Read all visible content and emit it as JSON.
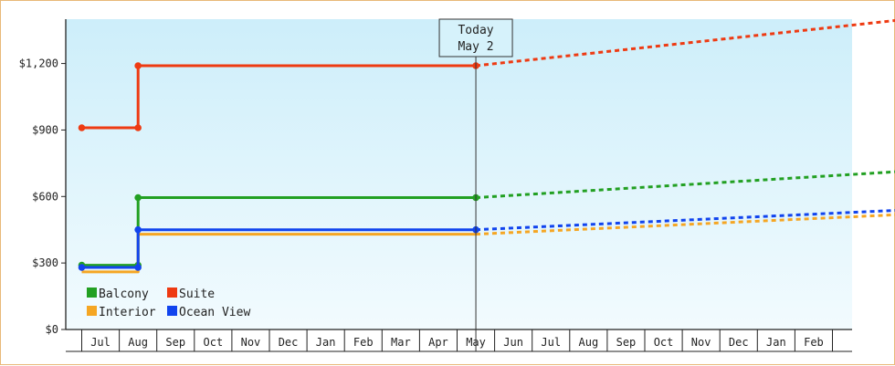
{
  "chart_data": {
    "type": "line",
    "subtype": "step-with-projection",
    "y_axis": {
      "ticks": [
        "$0",
        "$300",
        "$600",
        "$900",
        "$1,200"
      ],
      "tick_values": [
        0,
        300,
        600,
        900,
        1200
      ],
      "ylim": [
        0,
        1400
      ]
    },
    "x_axis": {
      "months": [
        "Jul",
        "Aug",
        "Sep",
        "Oct",
        "Nov",
        "Dec",
        "Jan",
        "Feb",
        "Mar",
        "Apr",
        "May",
        "Jun",
        "Jul",
        "Aug",
        "Sep",
        "Oct",
        "Nov",
        "Dec",
        "Jan",
        "Feb"
      ]
    },
    "today_marker": {
      "line1": "Today",
      "line2": "May 2",
      "x": 10.0
    },
    "grid": false,
    "legend_placement": "bottom-left",
    "colors": {
      "Balcony": "#22a022",
      "Suite": "#ee3a12",
      "Interior": "#f5a623",
      "Ocean View": "#1144ee"
    },
    "series": [
      {
        "name": "Balcony",
        "color": "#22a022",
        "historical": [
          {
            "x": -0.5,
            "y": 290
          },
          {
            "x": 1.0,
            "y": 290
          },
          {
            "x": 1.0,
            "y": 595
          },
          {
            "x": 10.0,
            "y": 595
          }
        ],
        "markers": [
          {
            "x": -0.5,
            "y": 290
          },
          {
            "x": 1.0,
            "y": 290
          },
          {
            "x": 1.0,
            "y": 595
          },
          {
            "x": 10.0,
            "y": 595
          }
        ],
        "projection": [
          {
            "x": 10.0,
            "y": 595
          },
          {
            "x": 21.5,
            "y": 715
          }
        ]
      },
      {
        "name": "Suite",
        "color": "#ee3a12",
        "historical": [
          {
            "x": -0.5,
            "y": 910
          },
          {
            "x": 1.0,
            "y": 910
          },
          {
            "x": 1.0,
            "y": 1190
          },
          {
            "x": 10.0,
            "y": 1190
          }
        ],
        "markers": [
          {
            "x": -0.5,
            "y": 910
          },
          {
            "x": 1.0,
            "y": 910
          },
          {
            "x": 1.0,
            "y": 1190
          },
          {
            "x": 10.0,
            "y": 1190
          }
        ],
        "projection": [
          {
            "x": 10.0,
            "y": 1190
          },
          {
            "x": 21.5,
            "y": 1400
          }
        ]
      },
      {
        "name": "Interior",
        "color": "#f5a623",
        "historical": [
          {
            "x": -0.5,
            "y": 260
          },
          {
            "x": 1.0,
            "y": 260
          },
          {
            "x": 1.0,
            "y": 430
          },
          {
            "x": 10.0,
            "y": 430
          }
        ],
        "markers": [],
        "projection": [
          {
            "x": 10.0,
            "y": 430
          },
          {
            "x": 21.5,
            "y": 520
          }
        ]
      },
      {
        "name": "Ocean View",
        "color": "#1144ee",
        "historical": [
          {
            "x": -0.5,
            "y": 280
          },
          {
            "x": 1.0,
            "y": 280
          },
          {
            "x": 1.0,
            "y": 450
          },
          {
            "x": 10.0,
            "y": 450
          }
        ],
        "markers": [
          {
            "x": -0.5,
            "y": 280
          },
          {
            "x": 1.0,
            "y": 280
          },
          {
            "x": 1.0,
            "y": 450
          },
          {
            "x": 10.0,
            "y": 450
          }
        ],
        "projection": [
          {
            "x": 10.0,
            "y": 450
          },
          {
            "x": 21.5,
            "y": 540
          }
        ]
      }
    ],
    "legend": [
      {
        "name": "Balcony",
        "color": "#22a022"
      },
      {
        "name": "Suite",
        "color": "#ee3a12"
      },
      {
        "name": "Interior",
        "color": "#f5a623"
      },
      {
        "name": "Ocean View",
        "color": "#1144ee"
      }
    ]
  }
}
